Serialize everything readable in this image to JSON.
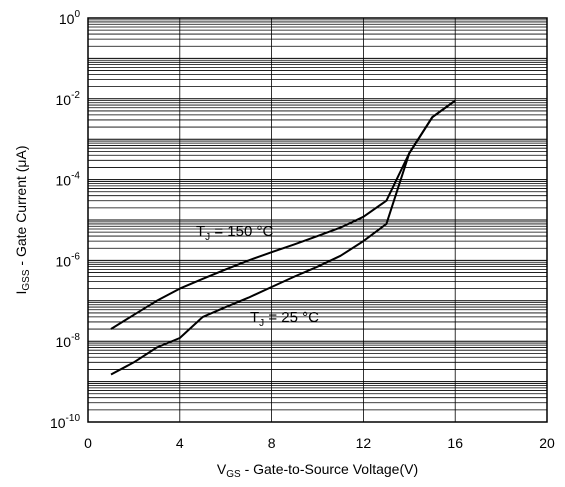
{
  "chart_data": {
    "type": "line",
    "xlabel": {
      "main": "V",
      "sub": "GS",
      "rest": " - Gate-to-Source Voltage(V)"
    },
    "ylabel": {
      "main": "I",
      "sub": "GSS",
      "rest": " - Gate Current (μA)"
    },
    "xlim": [
      0,
      20
    ],
    "ylim": [
      1e-10,
      1
    ],
    "yscale": "log",
    "grid": true,
    "x_ticks": [
      {
        "value": 0,
        "label": "0"
      },
      {
        "value": 4,
        "label": "4"
      },
      {
        "value": 8,
        "label": "8"
      },
      {
        "value": 12,
        "label": "12"
      },
      {
        "value": 16,
        "label": "16"
      },
      {
        "value": 20,
        "label": "20"
      }
    ],
    "y_ticks": [
      {
        "value": 1,
        "base": "10",
        "exp": "0"
      },
      {
        "value": 0.01,
        "base": "10",
        "exp": "-2"
      },
      {
        "value": 0.0001,
        "base": "10",
        "exp": "-4"
      },
      {
        "value": 1e-06,
        "base": "10",
        "exp": "-6"
      },
      {
        "value": 1e-08,
        "base": "10",
        "exp": "-8"
      },
      {
        "value": 1e-10,
        "base": "10",
        "exp": "-10"
      }
    ],
    "series": [
      {
        "label": {
          "main": "T",
          "sub": "J",
          "rest": " = 150 °C"
        },
        "x": [
          1,
          2,
          3,
          4,
          5,
          6,
          7,
          8,
          9,
          10,
          11,
          12,
          13,
          14,
          15,
          16
        ],
        "y": [
          2e-08,
          4.5e-08,
          1e-07,
          2e-07,
          3.5e-07,
          6e-07,
          1e-06,
          1.6e-06,
          2.5e-06,
          4e-06,
          6.5e-06,
          1.2e-05,
          3e-05,
          0.00045,
          0.0035,
          0.009
        ]
      },
      {
        "label": {
          "main": "T",
          "sub": "J",
          "rest": " = 25 °C"
        },
        "x": [
          1,
          2,
          3,
          4,
          5,
          6,
          7,
          8,
          9,
          10,
          11,
          12,
          13,
          14,
          15,
          16
        ],
        "y": [
          1.5e-09,
          3e-09,
          7e-09,
          1.2e-08,
          4e-08,
          7e-08,
          1.2e-07,
          2.2e-07,
          4e-07,
          7e-07,
          1.3e-06,
          3e-06,
          8e-06,
          0.00045,
          0.0035,
          0.009
        ]
      }
    ]
  }
}
